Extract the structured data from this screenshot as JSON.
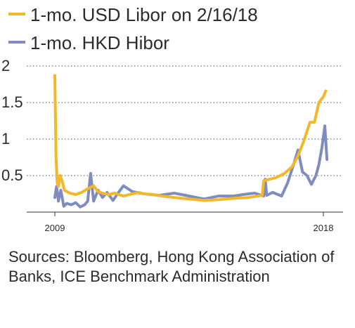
{
  "chart_data": {
    "type": "line",
    "title": "",
    "xlabel": "",
    "ylabel": "",
    "ylim": [
      0,
      2
    ],
    "xlim": [
      2008.9,
      2018.4
    ],
    "y_ticks": [
      {
        "value": 2,
        "label": "2"
      },
      {
        "value": 1.5,
        "label": "1.5"
      },
      {
        "value": 1,
        "label": "1"
      },
      {
        "value": 0.5,
        "label": "0.5"
      }
    ],
    "x_ticks": [
      {
        "value": 2009,
        "label": "2009"
      },
      {
        "value": 2018,
        "label": "2018"
      }
    ],
    "grid": "horizontal dotted",
    "legend": "top-left",
    "series": [
      {
        "name": "1-mo. USD Libor on 2/16/18",
        "color": "#f2b829",
        "x": [
          2009.0,
          2009.04,
          2009.08,
          2009.12,
          2009.18,
          2009.25,
          2009.32,
          2009.5,
          2009.7,
          2009.9,
          2010.1,
          2010.3,
          2010.45,
          2010.6,
          2010.8,
          2011.0,
          2011.3,
          2011.5,
          2011.8,
          2012.0,
          2012.3,
          2012.6,
          2013.0,
          2013.5,
          2014.0,
          2014.5,
          2015.0,
          2015.5,
          2015.95,
          2016.0,
          2016.4,
          2016.7,
          2016.95,
          2017.15,
          2017.35,
          2017.55,
          2017.7,
          2017.85,
          2018.0,
          2018.08
        ],
        "values": [
          1.87,
          0.75,
          0.4,
          0.35,
          0.5,
          0.42,
          0.3,
          0.26,
          0.24,
          0.27,
          0.32,
          0.36,
          0.28,
          0.26,
          0.24,
          0.26,
          0.22,
          0.24,
          0.27,
          0.25,
          0.24,
          0.22,
          0.2,
          0.18,
          0.16,
          0.17,
          0.19,
          0.2,
          0.23,
          0.43,
          0.47,
          0.53,
          0.62,
          0.77,
          0.98,
          1.23,
          1.23,
          1.5,
          1.58,
          1.66
        ]
      },
      {
        "name": "1-mo. HKD Hibor",
        "color": "#7f8cbf",
        "x": [
          2009.0,
          2009.06,
          2009.12,
          2009.2,
          2009.3,
          2009.4,
          2009.55,
          2009.7,
          2009.85,
          2010.0,
          2010.1,
          2010.2,
          2010.3,
          2010.45,
          2010.6,
          2010.75,
          2010.95,
          2011.1,
          2011.3,
          2011.6,
          2012.0,
          2012.5,
          2013.0,
          2013.5,
          2014.0,
          2014.5,
          2015.0,
          2015.3,
          2015.7,
          2016.0,
          2016.05,
          2016.1,
          2016.3,
          2016.6,
          2016.8,
          2017.0,
          2017.15,
          2017.3,
          2017.45,
          2017.6,
          2017.75,
          2017.85,
          2017.95,
          2018.05,
          2018.12
        ],
        "values": [
          0.2,
          0.35,
          0.15,
          0.3,
          0.08,
          0.12,
          0.1,
          0.13,
          0.07,
          0.1,
          0.15,
          0.53,
          0.15,
          0.3,
          0.2,
          0.27,
          0.16,
          0.25,
          0.36,
          0.28,
          0.25,
          0.23,
          0.26,
          0.22,
          0.18,
          0.22,
          0.22,
          0.24,
          0.26,
          0.22,
          0.45,
          0.23,
          0.27,
          0.22,
          0.4,
          0.65,
          0.85,
          0.55,
          0.5,
          0.38,
          0.5,
          0.65,
          0.88,
          1.18,
          0.72
        ]
      }
    ]
  },
  "sources_text": "Sources: Bloomberg, Hong Kong Association of Banks, ICE Benchmark Administration"
}
